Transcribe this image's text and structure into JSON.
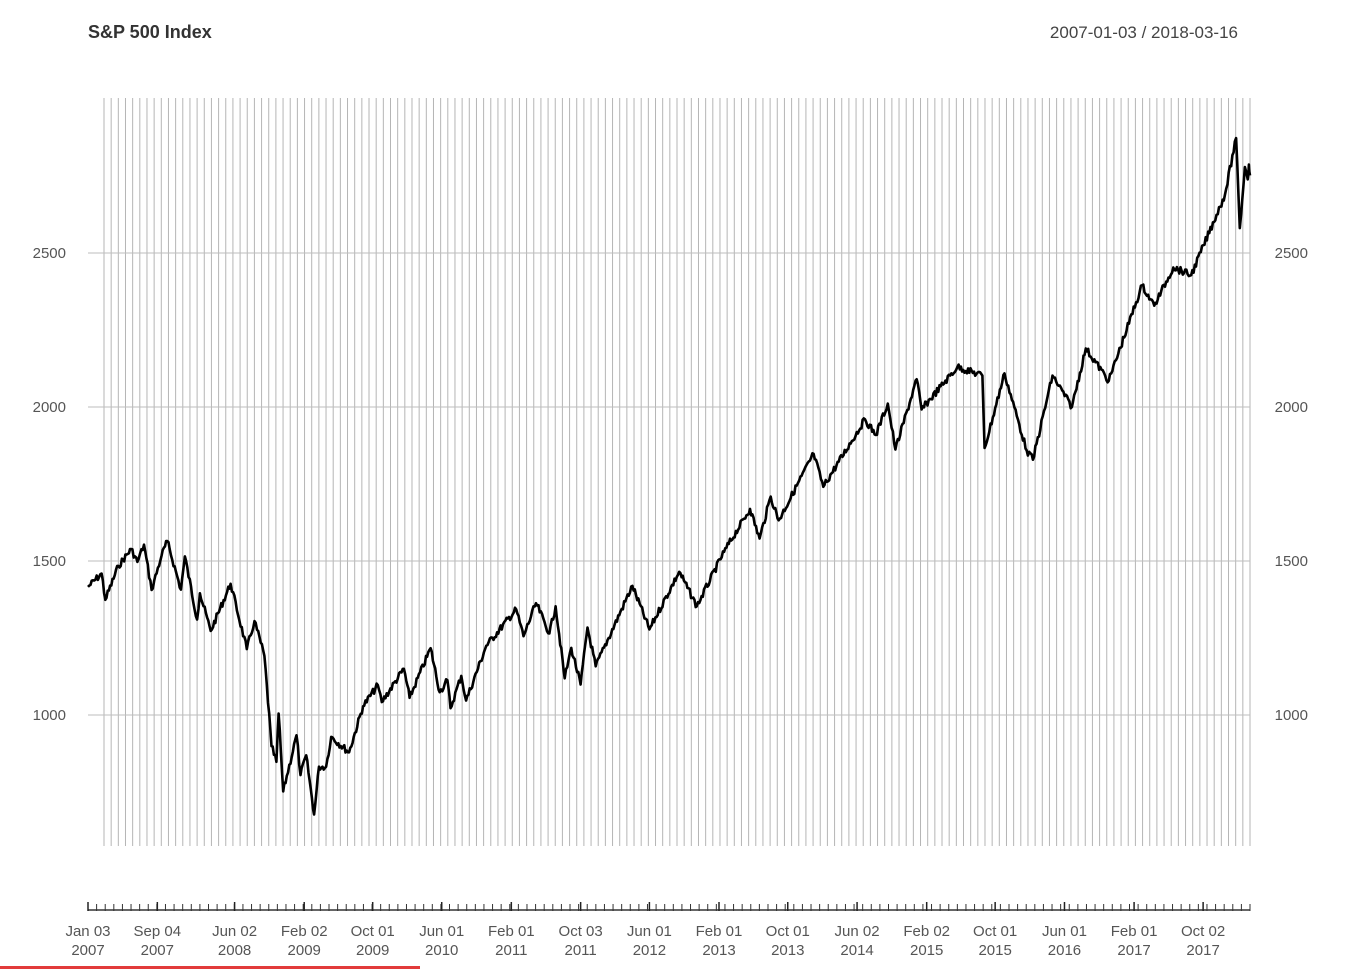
{
  "chart_data": {
    "type": "line",
    "title": "S&P 500 Index",
    "date_range": "2007-01-03 / 2018-03-16",
    "xlabel": "",
    "ylabel": "",
    "x_range": [
      "2007-01-03",
      "2018-03-16"
    ],
    "ylim": [
      660,
      2900
    ],
    "y_ticks": [
      1000,
      1500,
      2000,
      2500
    ],
    "grid": true,
    "x_ticks": [
      {
        "date": "2007-01-03",
        "label": [
          "Jan 03",
          "2007"
        ]
      },
      {
        "date": "2007-09-04",
        "label": [
          "Sep 04",
          "2007"
        ]
      },
      {
        "date": "2008-06-02",
        "label": [
          "Jun 02",
          "2008"
        ]
      },
      {
        "date": "2009-02-02",
        "label": [
          "Feb 02",
          "2009"
        ]
      },
      {
        "date": "2009-10-01",
        "label": [
          "Oct 01",
          "2009"
        ]
      },
      {
        "date": "2010-06-01",
        "label": [
          "Jun 01",
          "2010"
        ]
      },
      {
        "date": "2011-02-01",
        "label": [
          "Feb 01",
          "2011"
        ]
      },
      {
        "date": "2011-10-03",
        "label": [
          "Oct 03",
          "2011"
        ]
      },
      {
        "date": "2012-06-01",
        "label": [
          "Jun 01",
          "2012"
        ]
      },
      {
        "date": "2013-02-01",
        "label": [
          "Feb 01",
          "2013"
        ]
      },
      {
        "date": "2013-10-01",
        "label": [
          "Oct 01",
          "2013"
        ]
      },
      {
        "date": "2014-06-02",
        "label": [
          "Jun 02",
          "2014"
        ]
      },
      {
        "date": "2015-02-02",
        "label": [
          "Feb 02",
          "2015"
        ]
      },
      {
        "date": "2015-10-01",
        "label": [
          "Oct 01",
          "2015"
        ]
      },
      {
        "date": "2016-06-01",
        "label": [
          "Jun 01",
          "2016"
        ]
      },
      {
        "date": "2017-02-01",
        "label": [
          "Feb 01",
          "2017"
        ]
      },
      {
        "date": "2017-10-02",
        "label": [
          "Oct 02",
          "2017"
        ]
      }
    ],
    "series": [
      {
        "color": "#000000",
        "points": [
          [
            "2007-01-03",
            1416
          ],
          [
            "2007-02-20",
            1459
          ],
          [
            "2007-03-05",
            1374
          ],
          [
            "2007-04-20",
            1484
          ],
          [
            "2007-06-04",
            1539
          ],
          [
            "2007-06-26",
            1497
          ],
          [
            "2007-07-19",
            1553
          ],
          [
            "2007-08-15",
            1406
          ],
          [
            "2007-09-19",
            1518
          ],
          [
            "2007-10-09",
            1565
          ],
          [
            "2007-11-26",
            1407
          ],
          [
            "2007-12-10",
            1515
          ],
          [
            "2008-01-22",
            1310
          ],
          [
            "2008-02-01",
            1395
          ],
          [
            "2008-03-10",
            1273
          ],
          [
            "2008-05-19",
            1426
          ],
          [
            "2008-07-15",
            1214
          ],
          [
            "2008-08-11",
            1305
          ],
          [
            "2008-09-15",
            1192
          ],
          [
            "2008-10-10",
            899
          ],
          [
            "2008-10-27",
            848
          ],
          [
            "2008-11-04",
            1005
          ],
          [
            "2008-11-20",
            752
          ],
          [
            "2009-01-06",
            934
          ],
          [
            "2009-01-20",
            805
          ],
          [
            "2009-02-09",
            869
          ],
          [
            "2009-03-09",
            677
          ],
          [
            "2009-03-26",
            832
          ],
          [
            "2009-04-20",
            832
          ],
          [
            "2009-05-08",
            929
          ],
          [
            "2009-07-10",
            879
          ],
          [
            "2009-08-28",
            1028
          ],
          [
            "2009-10-19",
            1097
          ],
          [
            "2009-11-02",
            1042
          ],
          [
            "2010-01-19",
            1150
          ],
          [
            "2010-02-08",
            1056
          ],
          [
            "2010-04-23",
            1217
          ],
          [
            "2010-05-25",
            1074
          ],
          [
            "2010-06-21",
            1113
          ],
          [
            "2010-07-02",
            1022
          ],
          [
            "2010-08-09",
            1127
          ],
          [
            "2010-08-26",
            1047
          ],
          [
            "2010-11-05",
            1225
          ],
          [
            "2011-02-18",
            1343
          ],
          [
            "2011-03-16",
            1256
          ],
          [
            "2011-04-29",
            1363
          ],
          [
            "2011-06-15",
            1265
          ],
          [
            "2011-07-07",
            1353
          ],
          [
            "2011-08-08",
            1119
          ],
          [
            "2011-08-31",
            1218
          ],
          [
            "2011-10-03",
            1099
          ],
          [
            "2011-10-27",
            1284
          ],
          [
            "2011-11-25",
            1158
          ],
          [
            "2012-04-02",
            1419
          ],
          [
            "2012-06-01",
            1278
          ],
          [
            "2012-09-14",
            1465
          ],
          [
            "2012-11-15",
            1353
          ],
          [
            "2013-02-19",
            1530
          ],
          [
            "2013-05-21",
            1669
          ],
          [
            "2013-06-24",
            1573
          ],
          [
            "2013-08-02",
            1709
          ],
          [
            "2013-08-30",
            1632
          ],
          [
            "2013-12-31",
            1848
          ],
          [
            "2014-02-03",
            1741
          ],
          [
            "2014-06-30",
            1960
          ],
          [
            "2014-08-07",
            1909
          ],
          [
            "2014-09-18",
            2011
          ],
          [
            "2014-10-15",
            1862
          ],
          [
            "2014-12-29",
            2090
          ],
          [
            "2015-01-15",
            1992
          ],
          [
            "2015-05-21",
            2130
          ],
          [
            "2015-08-17",
            2102
          ],
          [
            "2015-08-25",
            1867
          ],
          [
            "2015-11-03",
            2109
          ],
          [
            "2016-01-20",
            1859
          ],
          [
            "2016-02-11",
            1829
          ],
          [
            "2016-04-20",
            2102
          ],
          [
            "2016-06-27",
            2000
          ],
          [
            "2016-08-15",
            2190
          ],
          [
            "2016-11-04",
            2085
          ],
          [
            "2017-03-01",
            2395
          ],
          [
            "2017-04-13",
            2329
          ],
          [
            "2017-06-19",
            2453
          ],
          [
            "2017-08-21",
            2428
          ],
          [
            "2017-12-18",
            2690
          ],
          [
            "2018-01-26",
            2873
          ],
          [
            "2018-02-08",
            2581
          ],
          [
            "2018-02-26",
            2779
          ],
          [
            "2018-03-08",
            2739
          ],
          [
            "2018-03-12",
            2787
          ],
          [
            "2018-03-16",
            2752
          ]
        ]
      }
    ]
  }
}
